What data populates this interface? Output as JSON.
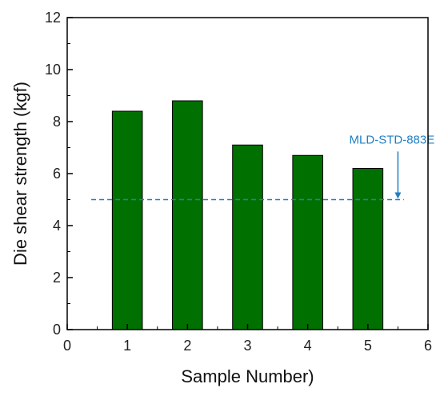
{
  "chart_data": {
    "type": "bar",
    "x": [
      1,
      2,
      3,
      4,
      5
    ],
    "values": [
      8.4,
      8.8,
      7.1,
      6.7,
      6.2
    ],
    "xlabel": "Sample Number)",
    "ylabel": "Die shear strength (kgf)",
    "xlim": [
      0,
      6
    ],
    "ylim": [
      0,
      12
    ],
    "xticks": [
      0,
      1,
      2,
      3,
      4,
      5,
      6
    ],
    "yticks": [
      0,
      2,
      4,
      6,
      8,
      10,
      12
    ],
    "grid": false,
    "bar_color": "#007000",
    "bar_edge_color": "#000000",
    "reference_line": {
      "value": 5,
      "x_range": [
        0.4,
        5.6
      ],
      "label": "MLD-STD-883E",
      "color": "#1f7fc4",
      "style": "dashed"
    }
  }
}
